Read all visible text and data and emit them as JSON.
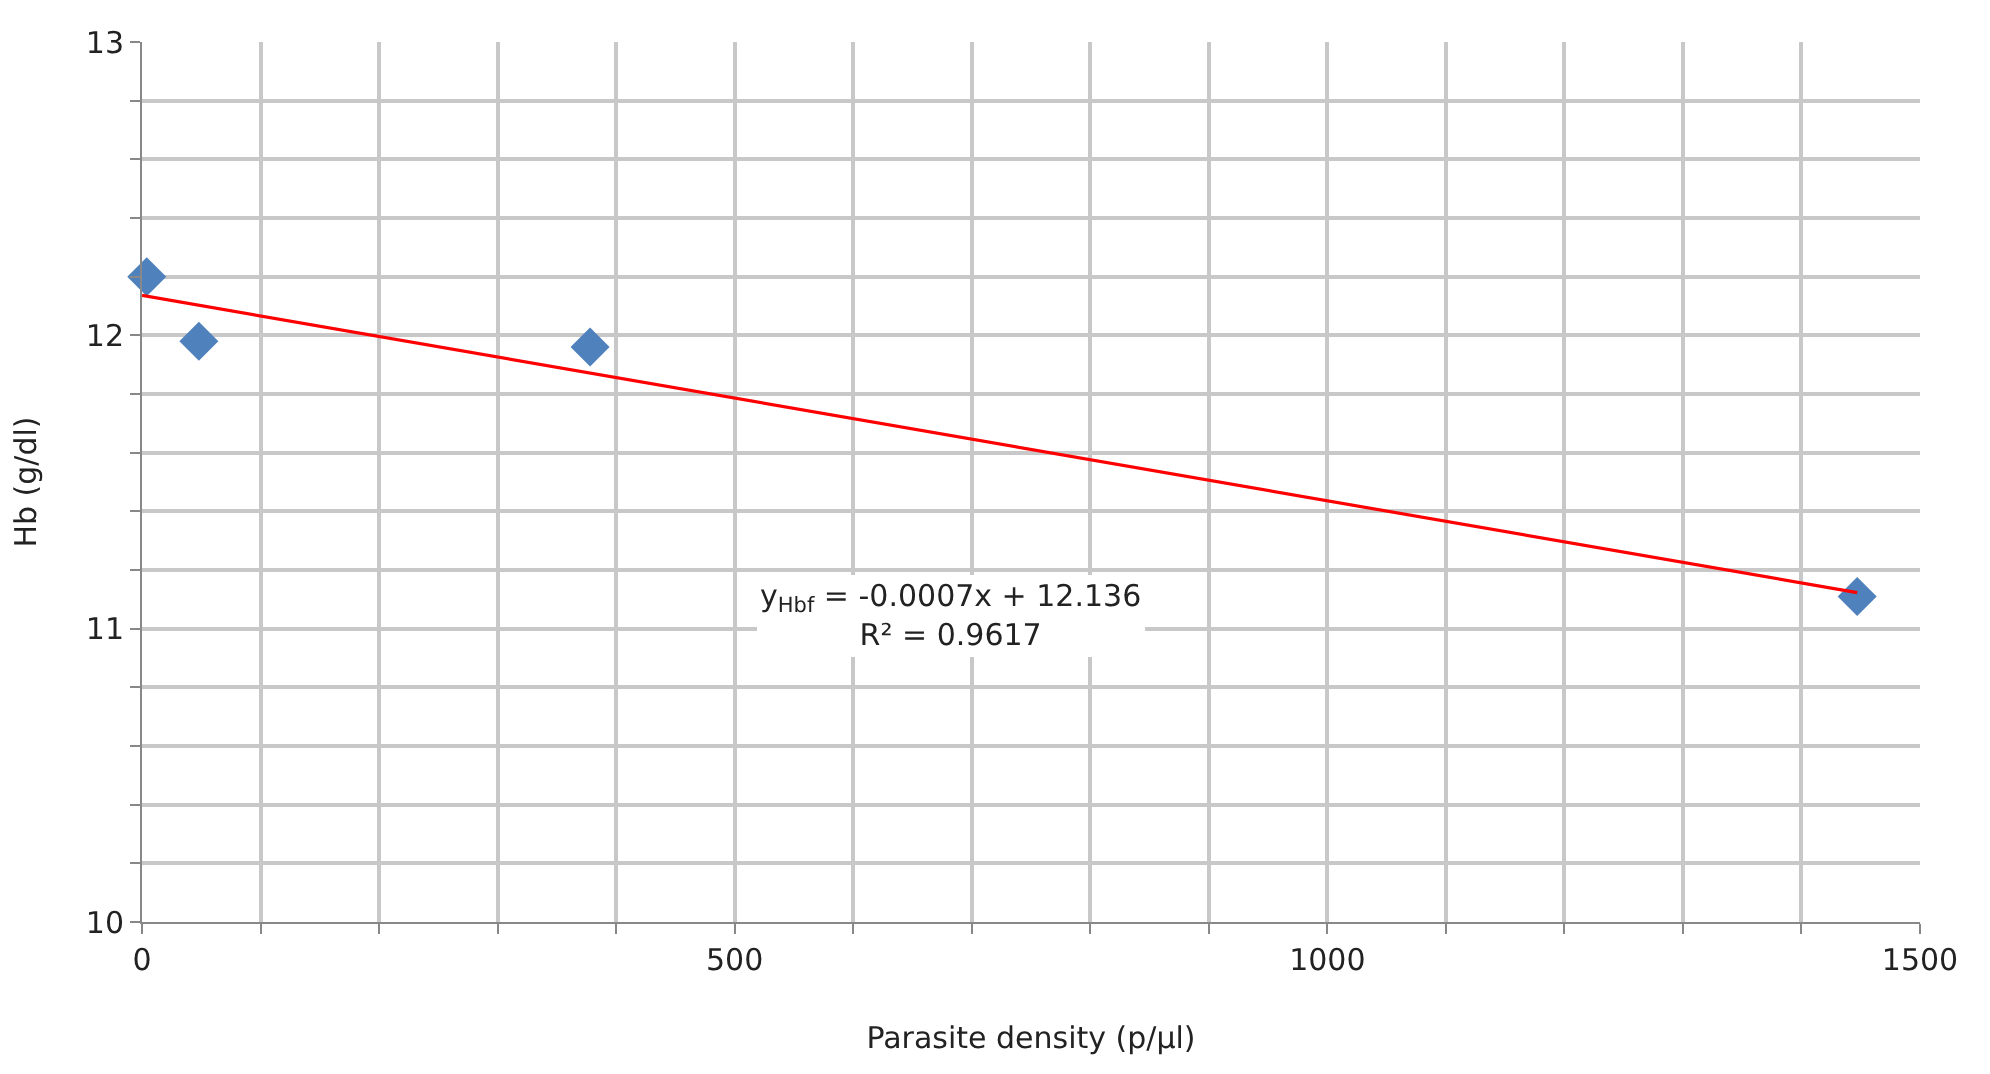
{
  "chart_data": {
    "type": "scatter",
    "xlabel": "Parasite density (p/µl)",
    "ylabel": "Hb (g/dl)",
    "series": [
      {
        "color": "#4f81bd",
        "x": [
          4,
          48,
          378,
          1447
        ],
        "values": [
          12.2,
          11.98,
          11.96,
          11.11
        ],
        "marker": "diamond"
      },
      {
        "type": "line",
        "color": "#ff0000",
        "x": [
          0,
          1447
        ],
        "values": [
          12.136,
          11.123
        ],
        "marker": "none",
        "line_style": "solid"
      }
    ],
    "xlim": [
      0,
      1500
    ],
    "ylim": [
      10,
      13
    ],
    "xticks": [
      0,
      {
        "value": 100,
        "label": null
      },
      {
        "value": 200,
        "label": null
      },
      {
        "value": 300,
        "label": null
      },
      {
        "value": 400,
        "label": null
      },
      500,
      {
        "value": 600,
        "label": null
      },
      {
        "value": 700,
        "label": null
      },
      {
        "value": 800,
        "label": null
      },
      {
        "value": 900,
        "label": null
      },
      1000,
      {
        "value": 1100,
        "label": null
      },
      {
        "value": 1200,
        "label": null
      },
      {
        "value": 1300,
        "label": null
      },
      {
        "value": 1400,
        "label": null
      },
      1500
    ],
    "yticks": [
      10,
      {
        "value": 10.2,
        "label": null
      },
      {
        "value": 10.4,
        "label": null
      },
      {
        "value": 10.6,
        "label": null
      },
      {
        "value": 10.8,
        "label": null
      },
      11,
      {
        "value": 11.2,
        "label": null
      },
      {
        "value": 11.4,
        "label": null
      },
      {
        "value": 11.6,
        "label": null
      },
      {
        "value": 11.8,
        "label": null
      },
      12,
      {
        "value": 12.2,
        "label": null
      },
      {
        "value": 12.4,
        "label": null
      },
      {
        "value": 12.6,
        "label": null
      },
      {
        "value": 12.8,
        "label": null
      },
      13
    ],
    "grid": true,
    "annotations": [
      "y$_{Hbf}$ = -0.0007x + 12.136",
      "R² = 0.9617"
    ]
  }
}
